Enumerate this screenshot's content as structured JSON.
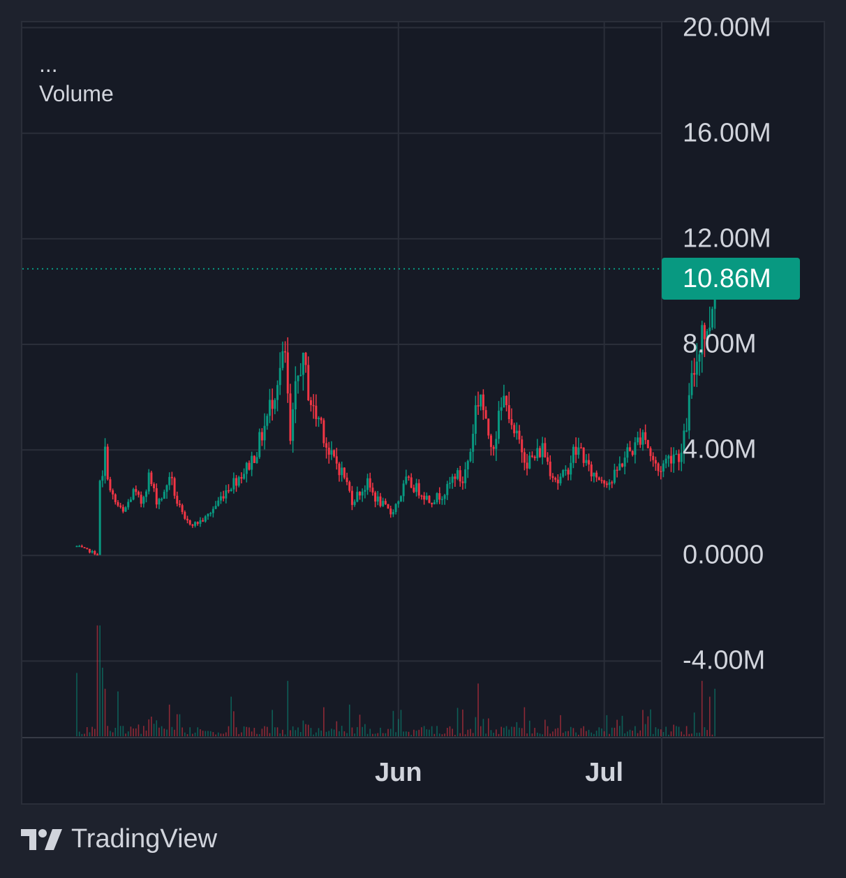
{
  "legend": {
    "menu": "...",
    "series": "Volume"
  },
  "brand": {
    "name": "TradingView",
    "logo_icon": "tradingview-logo-icon"
  },
  "colors": {
    "up": "#089981",
    "down": "#f23645",
    "grid": "#2a2e39",
    "background": "#161a25",
    "text": "#d1d4dc",
    "price_line": "#089981"
  },
  "chart_data": {
    "type": "candlestick",
    "title": "",
    "xlabel": "",
    "ylabel": "",
    "ylim": [
      -6.9,
      20.2
    ],
    "ytick_labels": [
      "20.00M",
      "16.00M",
      "12.00M",
      "8.00M",
      "4.00M",
      "0.0000",
      "-4.00M"
    ],
    "ytick_values": [
      20,
      16,
      12,
      8,
      4,
      0,
      -4
    ],
    "xtick_labels": [
      "Jun",
      "Jul"
    ],
    "xtick_positions": [
      62.5,
      102.5
    ],
    "x_range": [
      0,
      137
    ],
    "last_value": 10.86,
    "last_value_label": "10.86M",
    "grid": true,
    "legend": "top-left",
    "series": [
      {
        "name": "Volume",
        "kind": "ohlc",
        "units": "M",
        "anchor_closes": [
          [
            0,
            0.35
          ],
          [
            4,
            0.05
          ],
          [
            4.3,
            2.6
          ],
          [
            5,
            2.9
          ],
          [
            5.5,
            3.9
          ],
          [
            6.5,
            2.4
          ],
          [
            7.5,
            2.0
          ],
          [
            9,
            1.6
          ],
          [
            11,
            2.4
          ],
          [
            12.5,
            2.0
          ],
          [
            14,
            3.0
          ],
          [
            15.5,
            2.1
          ],
          [
            17,
            2.3
          ],
          [
            18,
            3.1
          ],
          [
            19.5,
            2.0
          ],
          [
            21,
            1.3
          ],
          [
            23,
            1.2
          ],
          [
            25,
            1.4
          ],
          [
            27,
            1.9
          ],
          [
            29,
            2.5
          ],
          [
            31,
            2.9
          ],
          [
            33,
            3.3
          ],
          [
            35,
            4.0
          ],
          [
            37,
            5.2
          ],
          [
            39,
            6.8
          ],
          [
            40.5,
            7.5
          ],
          [
            41.5,
            4.2
          ],
          [
            42.5,
            6.1
          ],
          [
            43.5,
            7.4
          ],
          [
            44.5,
            6.8
          ],
          [
            46,
            5.4
          ],
          [
            47.5,
            5.1
          ],
          [
            49,
            3.8
          ],
          [
            50.5,
            3.5
          ],
          [
            52,
            3.0
          ],
          [
            53.5,
            2.1
          ],
          [
            55,
            2.4
          ],
          [
            56.5,
            2.7
          ],
          [
            58,
            2.2
          ],
          [
            59.5,
            1.9
          ],
          [
            61,
            1.6
          ],
          [
            62.5,
            2.1
          ],
          [
            64,
            2.8
          ],
          [
            65.5,
            2.6
          ],
          [
            67,
            2.4
          ],
          [
            68.5,
            2.1
          ],
          [
            70,
            2.2
          ],
          [
            72,
            2.5
          ],
          [
            73.5,
            3.1
          ],
          [
            75,
            2.8
          ],
          [
            76.5,
            4.0
          ],
          [
            77.5,
            5.6
          ],
          [
            78.5,
            6.2
          ],
          [
            79.5,
            4.8
          ],
          [
            81,
            4.3
          ],
          [
            82.5,
            5.5
          ],
          [
            83.5,
            6.2
          ],
          [
            84.5,
            4.6
          ],
          [
            86,
            4.3
          ],
          [
            87.5,
            3.6
          ],
          [
            89,
            3.7
          ],
          [
            90.5,
            4.1
          ],
          [
            92,
            3.3
          ],
          [
            93.5,
            2.8
          ],
          [
            95,
            3.1
          ],
          [
            96.5,
            3.9
          ],
          [
            98,
            4.0
          ],
          [
            99.5,
            3.2
          ],
          [
            101,
            3.0
          ],
          [
            102.5,
            2.9
          ],
          [
            104,
            2.8
          ],
          [
            105.5,
            3.4
          ],
          [
            107,
            3.9
          ],
          [
            108.5,
            4.1
          ],
          [
            110,
            4.8
          ],
          [
            111.5,
            3.8
          ],
          [
            113,
            3.2
          ],
          [
            114.5,
            3.6
          ],
          [
            116,
            3.9
          ],
          [
            117.5,
            3.8
          ],
          [
            118.5,
            5.0
          ],
          [
            119.5,
            6.5
          ],
          [
            120.5,
            7.5
          ],
          [
            121.5,
            8.8
          ],
          [
            122.5,
            8.2
          ],
          [
            123.3,
            9.4
          ],
          [
            123.8,
            10.1
          ],
          [
            124.3,
            10.86
          ]
        ]
      },
      {
        "name": "Volume bars",
        "kind": "bar",
        "units": "relative",
        "baseline": -6.85,
        "spikes": [
          [
            0,
            2.4
          ],
          [
            4.3,
            4.2
          ],
          [
            4.7,
            2.6
          ],
          [
            5.6,
            1.8
          ],
          [
            8,
            1.7
          ],
          [
            18,
            1.2
          ],
          [
            30,
            1.5
          ],
          [
            38,
            1.0
          ],
          [
            41,
            2.1
          ],
          [
            48,
            1.1
          ],
          [
            53,
            1.2
          ],
          [
            63,
            1.0
          ],
          [
            78,
            2.0
          ],
          [
            87,
            1.1
          ],
          [
            94,
            0.8
          ],
          [
            103,
            0.8
          ],
          [
            110,
            1.0
          ],
          [
            120,
            0.9
          ],
          [
            121.5,
            2.1
          ],
          [
            123,
            1.5
          ],
          [
            124,
            1.8
          ]
        ]
      }
    ]
  }
}
